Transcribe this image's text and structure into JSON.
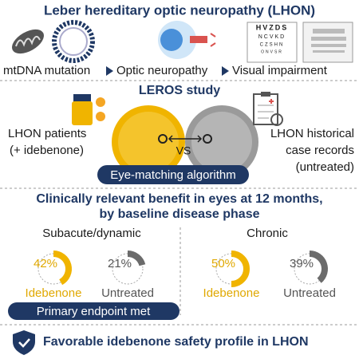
{
  "header": {
    "title": "Leber hereditary optic neuropathy (LHON)"
  },
  "pathway": [
    "mtDNA mutation",
    "Optic neuropathy",
    "Visual impairment"
  ],
  "eye_chart": [
    "HVZDS",
    "NCVKD",
    "CZSHN",
    "ONVSR"
  ],
  "study": {
    "title": "LEROS study",
    "left": [
      "LHON patients",
      "(+ idebenone)"
    ],
    "vs": "VS",
    "right": [
      "LHON historical",
      "case records",
      "(untreated)"
    ],
    "method": "Eye-matching algorithm"
  },
  "results": {
    "title": [
      "Clinically relevant benefit in eyes at 12 months,",
      "by baseline disease phase"
    ],
    "groups": [
      {
        "name": "Subacute/dynamic",
        "series": [
          {
            "name": "Idebenone",
            "value": 42,
            "value_label": "42%",
            "color": "#f0b400"
          },
          {
            "name": "Untreated",
            "value": 21,
            "value_label": "21%",
            "color": "#6b6b6b"
          }
        ]
      },
      {
        "name": "Chronic",
        "series": [
          {
            "name": "Idebenone",
            "value": 50,
            "value_label": "50%",
            "color": "#f0b400"
          },
          {
            "name": "Untreated",
            "value": 39,
            "value_label": "39%",
            "color": "#6b6b6b"
          }
        ]
      }
    ],
    "endpoint": "Primary endpoint met"
  },
  "footer": "Favorable idebenone safety profile in LHON"
}
